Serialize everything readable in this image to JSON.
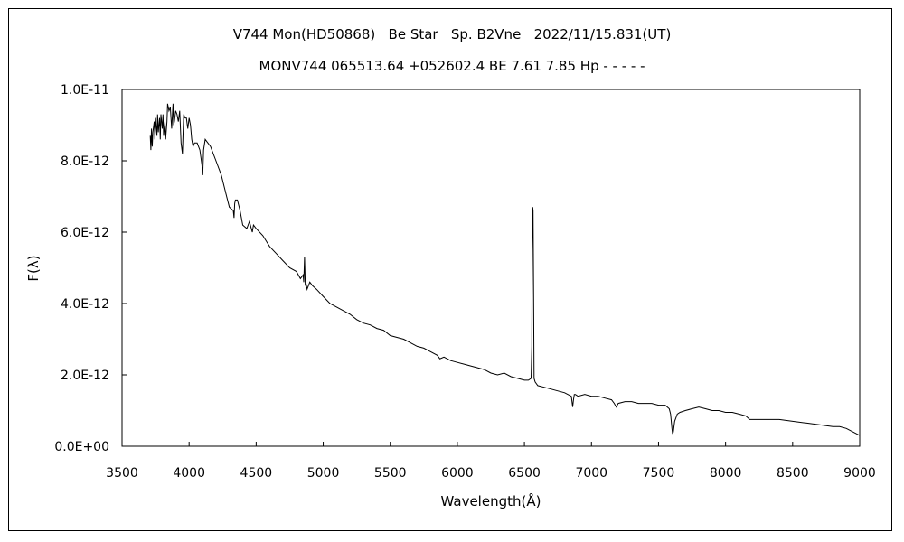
{
  "chart_data": {
    "type": "line",
    "title": "V744 Mon(HD50868)   Be Star   Sp. B2Vne   2022/11/15.831(UT)",
    "subtitle": "MONV744 065513.64 +052602.4 BE 7.61 7.85 Hp - - - - -",
    "xlabel": "Wavelength(Å)",
    "ylabel": "F(λ)",
    "xlim": [
      3500,
      9000
    ],
    "ylim": [
      0,
      1e-11
    ],
    "grid": false,
    "legend": "none",
    "line_color": "#000000",
    "x_ticks": [
      {
        "value": 3500,
        "label": "3500"
      },
      {
        "value": 4000,
        "label": "4000"
      },
      {
        "value": 4500,
        "label": "4500"
      },
      {
        "value": 5000,
        "label": "5000"
      },
      {
        "value": 5500,
        "label": "5500"
      },
      {
        "value": 6000,
        "label": "6000"
      },
      {
        "value": 6500,
        "label": "6500"
      },
      {
        "value": 7000,
        "label": "7000"
      },
      {
        "value": 7500,
        "label": "7500"
      },
      {
        "value": 8000,
        "label": "8000"
      },
      {
        "value": 8500,
        "label": "8500"
      },
      {
        "value": 9000,
        "label": "9000"
      }
    ],
    "y_ticks": [
      {
        "value": 0,
        "label": "0.0E+00"
      },
      {
        "value": 2e-12,
        "label": "2.0E-12"
      },
      {
        "value": 4e-12,
        "label": "4.0E-12"
      },
      {
        "value": 6e-12,
        "label": "6.0E-12"
      },
      {
        "value": 8e-12,
        "label": "8.0E-12"
      },
      {
        "value": 1e-11,
        "label": "1.0E-11"
      }
    ],
    "series": [
      {
        "x": [
          3710,
          3715,
          3720,
          3725,
          3730,
          3740,
          3745,
          3750,
          3760,
          3765,
          3770,
          3780,
          3785,
          3790,
          3800,
          3805,
          3810,
          3820,
          3825,
          3835,
          3840,
          3850,
          3860,
          3870,
          3880,
          3885,
          3890,
          3900,
          3910,
          3920,
          3930,
          3940,
          3950,
          3960,
          3970,
          3980,
          3990,
          4000,
          4010,
          4020,
          4030,
          4040,
          4060,
          4080,
          4095,
          4102,
          4108,
          4120,
          4140,
          4160,
          4200,
          4240,
          4280,
          4300,
          4330,
          4335,
          4340,
          4345,
          4360,
          4380,
          4400,
          4430,
          4450,
          4471,
          4480,
          4500,
          4550,
          4600,
          4650,
          4700,
          4750,
          4800,
          4830,
          4850,
          4855,
          4861,
          4866,
          4870,
          4880,
          4900,
          4920,
          4950,
          5000,
          5050,
          5100,
          5150,
          5200,
          5250,
          5300,
          5350,
          5400,
          5450,
          5500,
          5550,
          5600,
          5650,
          5700,
          5750,
          5800,
          5850,
          5870,
          5900,
          5950,
          6000,
          6050,
          6100,
          6150,
          6200,
          6250,
          6300,
          6350,
          6400,
          6450,
          6500,
          6530,
          6550,
          6555,
          6558,
          6562,
          6565,
          6568,
          6572,
          6580,
          6600,
          6650,
          6700,
          6750,
          6800,
          6850,
          6860,
          6866,
          6872,
          6880,
          6900,
          6950,
          7000,
          7050,
          7100,
          7150,
          7170,
          7185,
          7200,
          7250,
          7300,
          7350,
          7400,
          7450,
          7500,
          7550,
          7580,
          7590,
          7600,
          7605,
          7610,
          7620,
          7640,
          7660,
          7700,
          7750,
          7800,
          7850,
          7900,
          7950,
          8000,
          8050,
          8100,
          8150,
          8180,
          8200,
          8250,
          8300,
          8400,
          8500,
          8600,
          8700,
          8800,
          8850,
          8900,
          8950,
          9000
        ],
        "y": [
          8.7e-12,
          8.3e-12,
          8.9e-12,
          8.4e-12,
          8.8e-12,
          9.1e-12,
          8.6e-12,
          9.2e-12,
          8.7e-12,
          9.3e-12,
          8.8e-12,
          9.2e-12,
          8.6e-12,
          9.3e-12,
          8.9e-12,
          9.3e-12,
          8.7e-12,
          9.1e-12,
          8.6e-12,
          9.1e-12,
          9.6e-12,
          9.4e-12,
          9.5e-12,
          8.9e-12,
          9.6e-12,
          9e-12,
          9.1e-12,
          9.4e-12,
          9.3e-12,
          9.1e-12,
          9.4e-12,
          8.5e-12,
          8.2e-12,
          9.3e-12,
          9.2e-12,
          9.2e-12,
          8.9e-12,
          9.2e-12,
          9e-12,
          8.6e-12,
          8.4e-12,
          8.5e-12,
          8.5e-12,
          8.3e-12,
          7.9e-12,
          7.6e-12,
          8.3e-12,
          8.6e-12,
          8.5e-12,
          8.4e-12,
          8e-12,
          7.6e-12,
          7e-12,
          6.7e-12,
          6.6e-12,
          6.4e-12,
          6.8e-12,
          6.9e-12,
          6.9e-12,
          6.6e-12,
          6.2e-12,
          6.1e-12,
          6.3e-12,
          6e-12,
          6.2e-12,
          6.1e-12,
          5.9e-12,
          5.6e-12,
          5.4e-12,
          5.2e-12,
          5e-12,
          4.9e-12,
          4.7e-12,
          4.8e-12,
          4.6e-12,
          5.3e-12,
          4.5e-12,
          4.6e-12,
          4.4e-12,
          4.6e-12,
          4.5e-12,
          4.4e-12,
          4.2e-12,
          4e-12,
          3.9e-12,
          3.8e-12,
          3.7e-12,
          3.55e-12,
          3.45e-12,
          3.4e-12,
          3.3e-12,
          3.25e-12,
          3.1e-12,
          3.05e-12,
          3e-12,
          2.9e-12,
          2.8e-12,
          2.75e-12,
          2.65e-12,
          2.55e-12,
          2.45e-12,
          2.5e-12,
          2.4e-12,
          2.35e-12,
          2.3e-12,
          2.25e-12,
          2.2e-12,
          2.15e-12,
          2.05e-12,
          2e-12,
          2.05e-12,
          1.95e-12,
          1.9e-12,
          1.85e-12,
          1.85e-12,
          1.9e-12,
          2.8e-12,
          5.5e-12,
          6.7e-12,
          6.6e-12,
          4.5e-12,
          1.9e-12,
          1.8e-12,
          1.7e-12,
          1.65e-12,
          1.6e-12,
          1.55e-12,
          1.5e-12,
          1.4e-12,
          1.1e-12,
          1.3e-12,
          1.45e-12,
          1.45e-12,
          1.4e-12,
          1.45e-12,
          1.4e-12,
          1.4e-12,
          1.35e-12,
          1.3e-12,
          1.2e-12,
          1.1e-12,
          1.2e-12,
          1.25e-12,
          1.25e-12,
          1.2e-12,
          1.2e-12,
          1.2e-12,
          1.15e-12,
          1.15e-12,
          1.05e-12,
          9e-13,
          5e-13,
          3.5e-13,
          4e-13,
          7e-13,
          9e-13,
          9.5e-13,
          1e-12,
          1.05e-12,
          1.1e-12,
          1.05e-12,
          1e-12,
          1e-12,
          9.5e-13,
          9.5e-13,
          9e-13,
          8.5e-13,
          7.5e-13,
          7.5e-13,
          7.5e-13,
          7.5e-13,
          7.5e-13,
          7e-13,
          6.5e-13,
          6e-13,
          5.5e-13,
          5.5e-13,
          5e-13,
          4e-13,
          3e-13
        ]
      }
    ]
  }
}
